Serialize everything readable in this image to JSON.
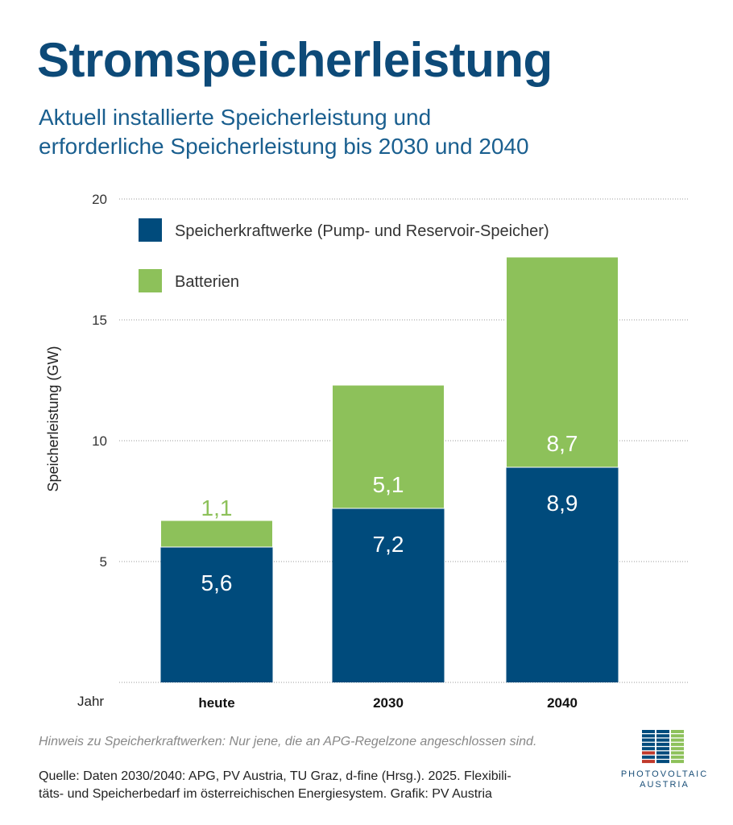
{
  "title": "Stromspeicherleistung",
  "subtitle_line1": "Aktuell installierte Speicherleistung und",
  "subtitle_line2": "erforderliche Speicherleistung bis 2030 und 2040",
  "note": "Hinweis zu Speicherkraftwerken: Nur jene, die an APG-Regelzone angeschlossen sind.",
  "source_line1": "Quelle: Daten 2030/2040: APG, PV Austria, TU Graz, d-fine (Hrsg.). 2025. Flexibili-",
  "source_line2": "täts- und Speicherbedarf im österreichischen Energiesystem. Grafik: PV Austria",
  "logo": {
    "line1": "PHOTOVOLTAIC",
    "line2": "AUSTRIA"
  },
  "colors": {
    "navy": "#004b7c",
    "green": "#8dc15a",
    "title": "#0d4a78"
  },
  "chart_data": {
    "type": "bar",
    "stacked": true,
    "categories": [
      "heute",
      "2030",
      "2040"
    ],
    "series": [
      {
        "name": "Speicherkraftwerke (Pump- und Reservoir-Speicher)",
        "values": [
          5.6,
          7.2,
          8.9
        ],
        "labels": [
          "5,6",
          "7,2",
          "8,9"
        ],
        "color": "#004b7c"
      },
      {
        "name": "Batterien",
        "values": [
          1.1,
          5.1,
          8.7
        ],
        "labels": [
          "1,1",
          "5,1",
          "8,7"
        ],
        "color": "#8dc15a"
      }
    ],
    "xlabel": "Jahr",
    "ylabel": "Speicherleistung (GW)",
    "ylim": [
      0,
      20
    ],
    "yticks": [
      5,
      10,
      15,
      20
    ],
    "grid": true,
    "legend": "top-left"
  }
}
